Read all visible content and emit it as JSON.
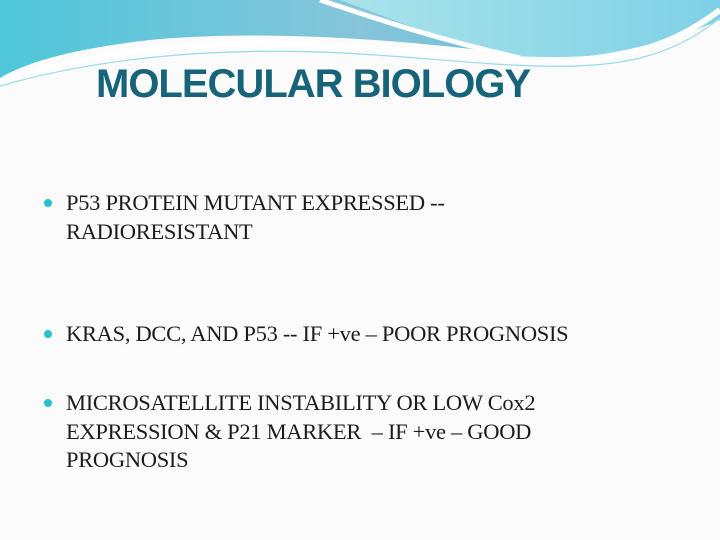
{
  "slide": {
    "title": "MOLECULAR BIOLOGY",
    "accent_color": "#17647a",
    "bullet_color": "#29c0cc",
    "bullets": [
      {
        "lines": [
          "P53 PROTEIN MUTANT EXPRESSED --",
          "RADIORESISTANT"
        ]
      },
      {
        "lines": [
          "KRAS, DCC, AND P53 -- IF +ve – POOR PROGNOSIS"
        ]
      },
      {
        "lines": [
          "MICROSATELLITE INSTABILITY OR LOW Cox2",
          "EXPRESSION & P21 MARKER  – IF +ve – GOOD",
          "PROGNOSIS"
        ]
      }
    ]
  }
}
